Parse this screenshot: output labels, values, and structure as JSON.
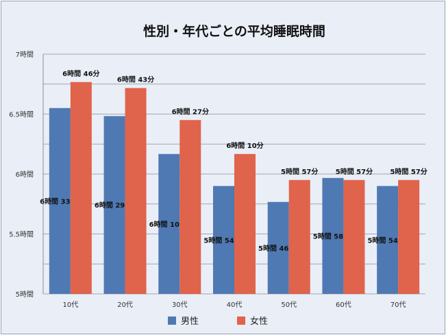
{
  "chart_data": {
    "type": "bar",
    "title": "性別・年代ごとの平均睡眠時間",
    "categories": [
      "10代",
      "20代",
      "30代",
      "40代",
      "50代",
      "60代",
      "70代"
    ],
    "ylim": [
      5,
      7
    ],
    "ytick_values": [
      5,
      5.5,
      6,
      6.5,
      7
    ],
    "ytick_labels": [
      "5時間",
      "5.5時間",
      "6時間",
      "6.5時間",
      "7時間"
    ],
    "grid": true,
    "legend_position": "bottom",
    "series": [
      {
        "name": "男性",
        "color": "#4f79b3",
        "values": [
          6.55,
          6.483,
          6.167,
          5.9,
          5.767,
          5.967,
          5.9
        ],
        "labels": [
          "6時間 33分",
          "6時間 29分",
          "6時間 10分",
          "5時間 54分",
          "5時間 46分",
          "5時間 58分",
          "5時間 54分"
        ]
      },
      {
        "name": "女性",
        "color": "#e0634b",
        "values": [
          6.767,
          6.717,
          6.45,
          6.167,
          5.95,
          5.95,
          5.95
        ],
        "labels": [
          "6時間 46分",
          "6時間 43分",
          "6時間 27分",
          "6時間 10分",
          "5時間 57分",
          "5時間 57分",
          "5時間 57分"
        ]
      }
    ]
  }
}
